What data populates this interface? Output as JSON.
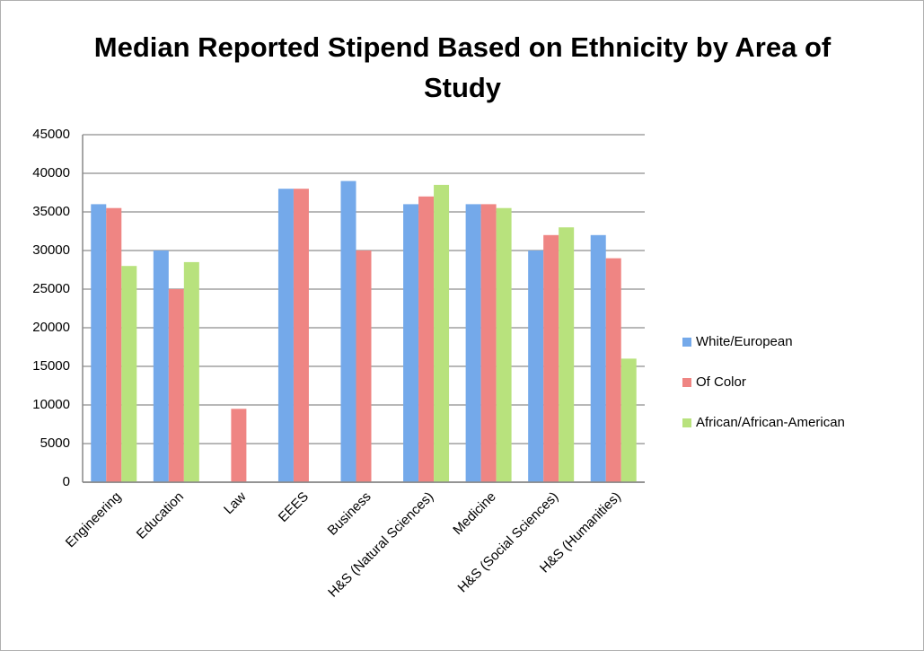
{
  "chart_data": {
    "type": "bar",
    "title": "Median Reported Stipend Based on Ethnicity by Area of Study",
    "categories": [
      "Engineering",
      "Education",
      "Law",
      "EEES",
      "Business",
      "H&S (Natural Sciences)",
      "Medicine",
      "H&S (Social Sciences)",
      "H&S (Humanities)"
    ],
    "series": [
      {
        "name": "White/European",
        "color": "#74a9ea",
        "values": [
          36000,
          30000,
          null,
          38000,
          39000,
          36000,
          36000,
          30000,
          32000
        ]
      },
      {
        "name": "Of Color",
        "color": "#ef8583",
        "values": [
          35500,
          25000,
          9500,
          38000,
          30000,
          37000,
          36000,
          32000,
          29000
        ]
      },
      {
        "name": "African/African-American",
        "color": "#b8e27d",
        "values": [
          28000,
          28500,
          null,
          null,
          null,
          38500,
          35500,
          33000,
          16000
        ]
      }
    ],
    "ylim": [
      0,
      45000
    ],
    "yticks": [
      0,
      5000,
      10000,
      15000,
      20000,
      25000,
      30000,
      35000,
      40000,
      45000
    ],
    "grid": true,
    "legend": "right"
  }
}
